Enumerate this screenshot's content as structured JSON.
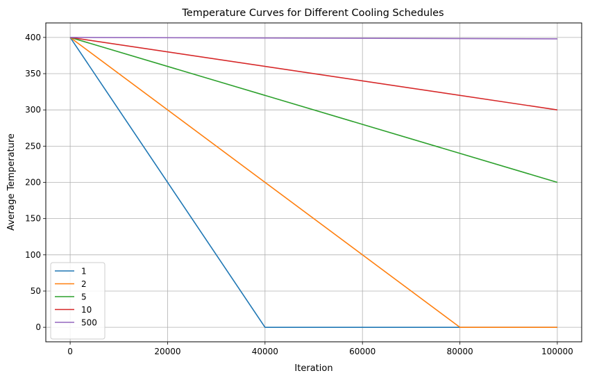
{
  "chart_data": {
    "type": "line",
    "title": "Temperature Curves for Different Cooling Schedules",
    "xlabel": "Iteration",
    "ylabel": "Average Temperature",
    "xlim": [
      -5000,
      105000
    ],
    "ylim": [
      -20,
      420
    ],
    "xticks": [
      0,
      20000,
      40000,
      60000,
      80000,
      100000
    ],
    "yticks": [
      0,
      50,
      100,
      150,
      200,
      250,
      300,
      350,
      400
    ],
    "grid": true,
    "legend_position": "lower left",
    "series": [
      {
        "name": "1",
        "color": "#1f77b4",
        "points": [
          [
            0,
            400
          ],
          [
            40000,
            0
          ],
          [
            100000,
            0
          ]
        ]
      },
      {
        "name": "2",
        "color": "#ff7f0e",
        "points": [
          [
            0,
            400
          ],
          [
            80000,
            0
          ],
          [
            100000,
            0
          ]
        ]
      },
      {
        "name": "5",
        "color": "#2ca02c",
        "points": [
          [
            0,
            400
          ],
          [
            100000,
            200
          ]
        ]
      },
      {
        "name": "10",
        "color": "#d62728",
        "points": [
          [
            0,
            400
          ],
          [
            100000,
            300
          ]
        ]
      },
      {
        "name": "500",
        "color": "#9467bd",
        "points": [
          [
            0,
            400
          ],
          [
            100000,
            398
          ]
        ]
      }
    ]
  }
}
